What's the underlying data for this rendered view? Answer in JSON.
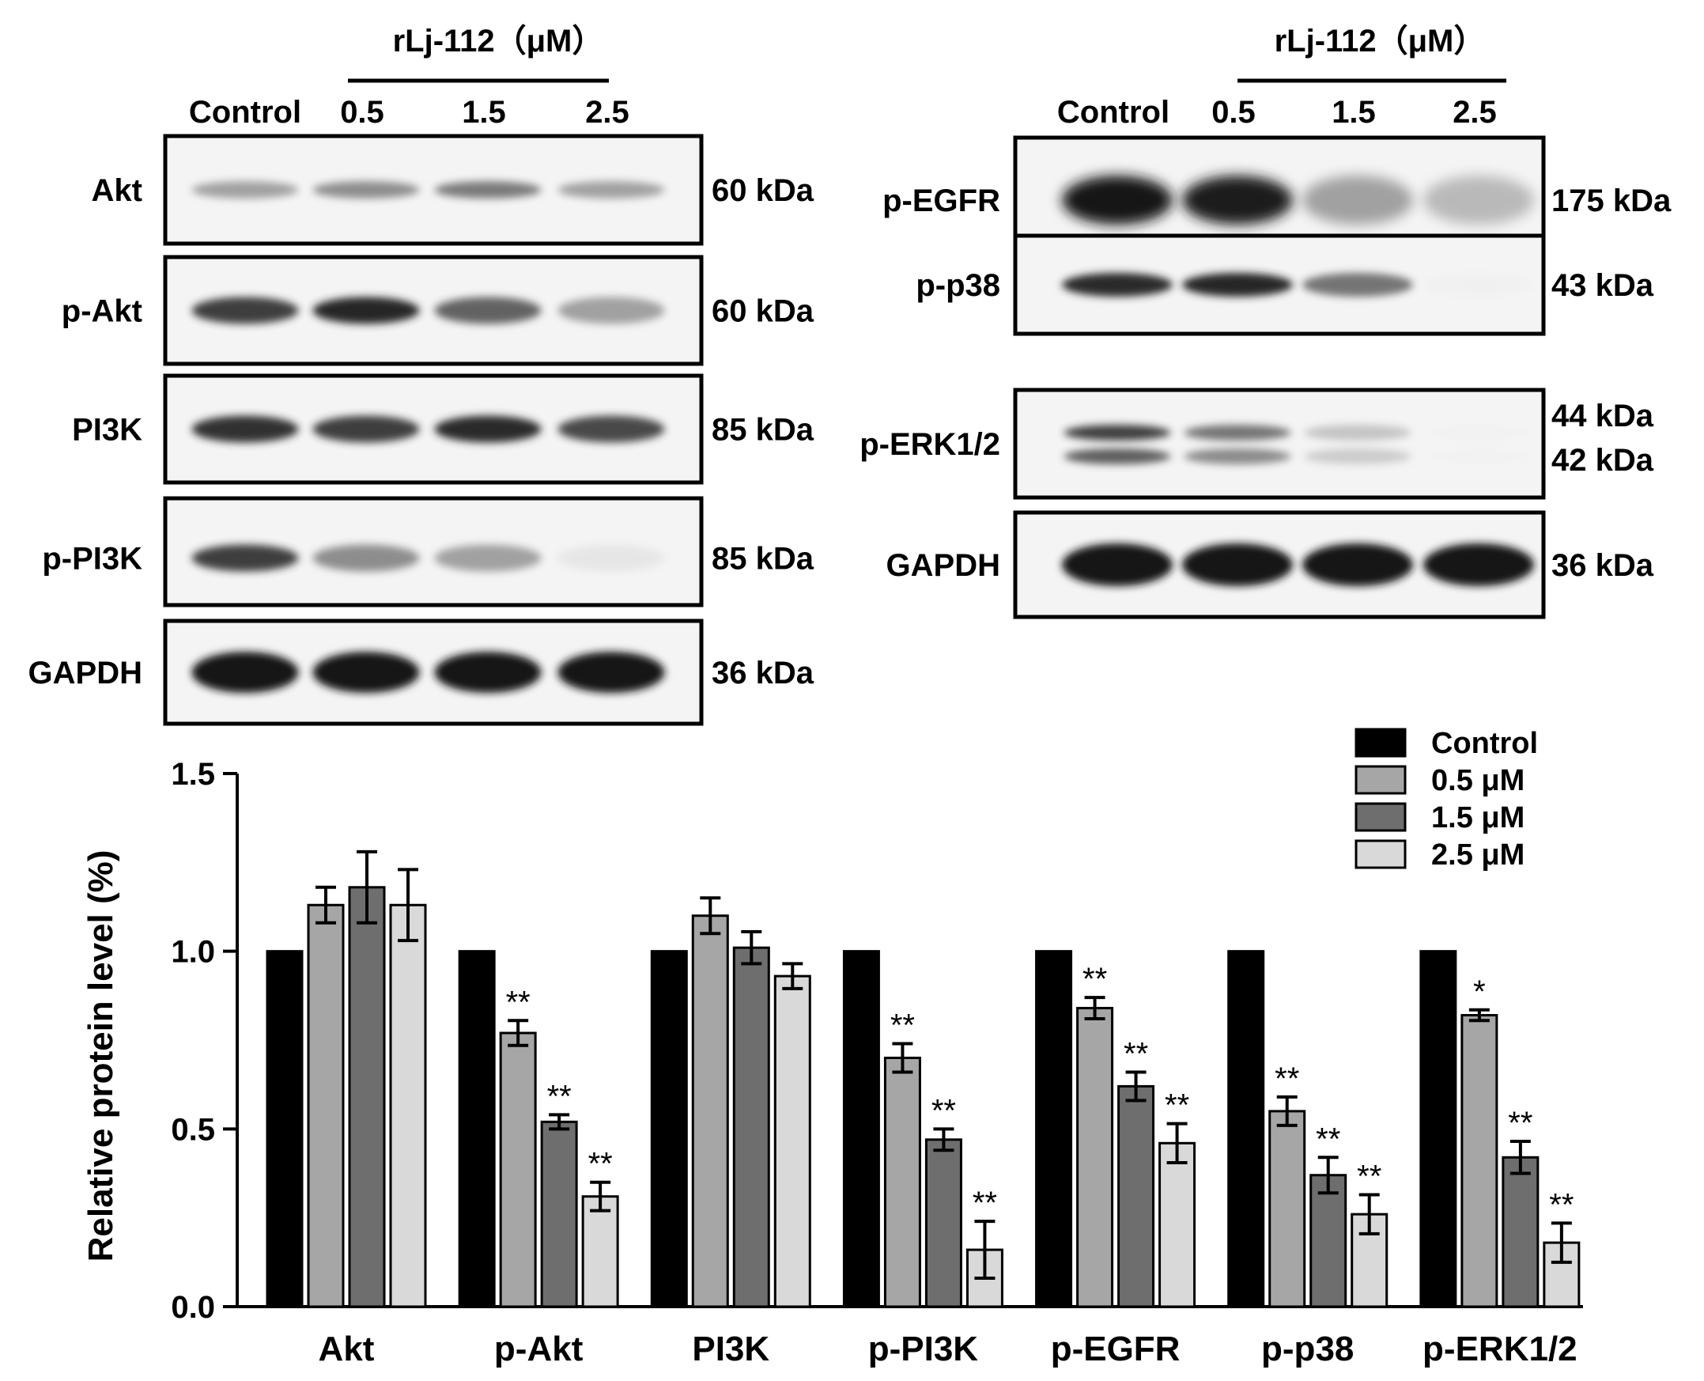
{
  "left_blot": {
    "treatment_header": "rLj-112（μM）",
    "lanes": [
      "Control",
      "0.5",
      "1.5",
      "2.5"
    ],
    "rows": [
      {
        "protein": "Akt",
        "size": "60 kDa",
        "intensity": [
          0.55,
          0.62,
          0.68,
          0.55
        ]
      },
      {
        "protein": "p-Akt",
        "size": "60 kDa",
        "intensity": [
          0.85,
          0.92,
          0.75,
          0.55
        ]
      },
      {
        "protein": "PI3K",
        "size": "85 kDa",
        "intensity": [
          0.88,
          0.85,
          0.9,
          0.82
        ]
      },
      {
        "protein": "p-PI3K",
        "size": "85 kDa",
        "intensity": [
          0.85,
          0.62,
          0.55,
          0.18
        ]
      },
      {
        "protein": "GAPDH",
        "size": "36 kDa",
        "intensity": [
          1.0,
          1.0,
          1.0,
          1.0
        ]
      }
    ]
  },
  "right_blot": {
    "treatment_header": "rLj-112（μM）",
    "lanes": [
      "Control",
      "0.5",
      "1.5",
      "2.5"
    ],
    "rows": [
      {
        "protein": "p-EGFR",
        "sizes": [
          "175 kDa"
        ],
        "intensity": [
          1.0,
          0.95,
          0.55,
          0.45
        ]
      },
      {
        "protein": "p-p38",
        "sizes": [
          "43 kDa"
        ],
        "intensity": [
          0.9,
          0.92,
          0.7,
          0.05
        ]
      },
      {
        "protein": "p-ERK1/2",
        "sizes": [
          "44 kDa",
          "42 kDa"
        ],
        "intensity": [
          0.85,
          0.7,
          0.4,
          0.03
        ]
      },
      {
        "protein": "GAPDH",
        "sizes": [
          "36 kDa"
        ],
        "intensity": [
          1.0,
          1.0,
          1.0,
          1.0
        ]
      }
    ]
  },
  "chart_data": {
    "type": "bar",
    "title": "",
    "xlabel": "",
    "ylabel": "Relative protein level (%)",
    "ylim": [
      0,
      1.5
    ],
    "yticks": [
      "0.0",
      "0.5",
      "1.0",
      "1.5"
    ],
    "categories": [
      "Akt",
      "p-Akt",
      "PI3K",
      "p-PI3K",
      "p-EGFR",
      "p-p38",
      "p-ERK1/2"
    ],
    "legend_position": "top-right",
    "series": [
      {
        "name": "Control",
        "color": "#000000",
        "values": [
          1.0,
          1.0,
          1.0,
          1.0,
          1.0,
          1.0,
          1.0
        ],
        "errors": [
          0,
          0,
          0,
          0,
          0,
          0,
          0
        ],
        "significance": [
          "",
          "",
          "",
          "",
          "",
          "",
          ""
        ]
      },
      {
        "name": "0.5 μM",
        "color": "#a6a6a6",
        "values": [
          1.13,
          0.77,
          1.1,
          0.7,
          0.84,
          0.55,
          0.82
        ],
        "errors": [
          0.05,
          0.035,
          0.05,
          0.04,
          0.03,
          0.04,
          0.015
        ],
        "significance": [
          "",
          "**",
          "",
          "**",
          "**",
          "**",
          "*"
        ]
      },
      {
        "name": "1.5 μM",
        "color": "#6e6e6e",
        "values": [
          1.18,
          0.52,
          1.01,
          0.47,
          0.62,
          0.37,
          0.42
        ],
        "errors": [
          0.1,
          0.02,
          0.045,
          0.03,
          0.04,
          0.05,
          0.045
        ],
        "significance": [
          "",
          "**",
          "",
          "**",
          "**",
          "**",
          "**"
        ]
      },
      {
        "name": "2.5 μM",
        "color": "#d9d9d9",
        "values": [
          1.13,
          0.31,
          0.93,
          0.16,
          0.46,
          0.26,
          0.18
        ],
        "errors": [
          0.1,
          0.04,
          0.035,
          0.08,
          0.055,
          0.055,
          0.055
        ],
        "significance": [
          "",
          "**",
          "",
          "**",
          "**",
          "**",
          "**"
        ]
      }
    ]
  }
}
